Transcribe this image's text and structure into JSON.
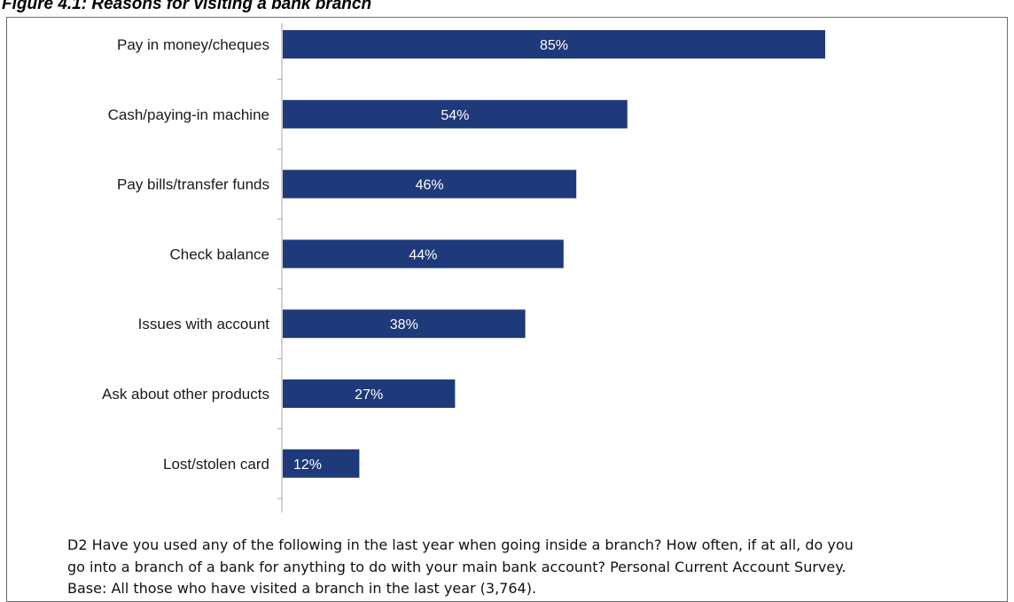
{
  "figure_title": "Figure 4.1: Reasons for visiting a bank branch",
  "footnote": "D2 Have you used any of the following in the last year when going inside a branch? How often, if at all, do you go into a branch of a bank for anything to do with your main bank account? Personal Current Account Survey. Base: All those who have visited a branch in the last year (3,764).",
  "chart_data": {
    "type": "bar",
    "orientation": "horizontal",
    "title": "Figure 4.1: Reasons for visiting a bank branch",
    "categories": [
      "Pay in money/cheques",
      "Cash/paying-in machine",
      "Pay bills/transfer funds",
      "Check balance",
      "Issues with account",
      "Ask about other products",
      "Lost/stolen card"
    ],
    "values": [
      85,
      54,
      46,
      44,
      38,
      27,
      12
    ],
    "value_labels": [
      "85%",
      "54%",
      "46%",
      "44%",
      "38%",
      "27%",
      "12%"
    ],
    "unit": "%",
    "xlim": [
      0,
      100
    ],
    "bar_color": "#1f3a7a",
    "label_color": "#ffffff",
    "grid": false,
    "legend": "none"
  }
}
